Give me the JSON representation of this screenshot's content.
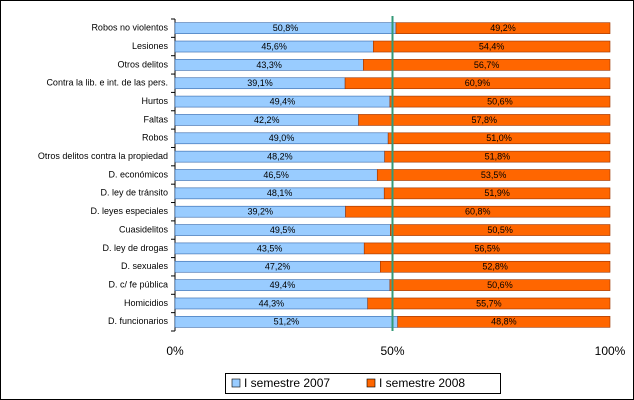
{
  "chart_data": {
    "type": "stacked_barh",
    "categories": [
      "Robos no violentos",
      "Lesiones",
      "Otros delitos",
      "Contra la lib. e int. de las pers.",
      "Hurtos",
      "Faltas",
      "Robos",
      "Otros delitos contra la propiedad",
      "D. económicos",
      "D. ley de tránsito",
      "D. leyes especiales",
      "Cuasidelitos",
      "D. ley de drogas",
      "D. sexuales",
      "D. c/ fe pública",
      "Homicidios",
      "D. funcionarios"
    ],
    "series": [
      {
        "name": "I semestre 2007",
        "color": "#99ccff",
        "values": [
          50.8,
          45.6,
          43.3,
          39.1,
          49.4,
          42.2,
          49.0,
          48.2,
          46.5,
          48.1,
          39.2,
          49.5,
          43.5,
          47.2,
          49.4,
          44.3,
          51.2
        ],
        "value_labels": [
          "50,8%",
          "45,6%",
          "43,3%",
          "39,1%",
          "49,4%",
          "42,2%",
          "49,0%",
          "48,2%",
          "46,5%",
          "48,1%",
          "39,2%",
          "49,5%",
          "43,5%",
          "47,2%",
          "49,4%",
          "44,3%",
          "51,2%"
        ]
      },
      {
        "name": "I semestre 2008",
        "color": "#ff6600",
        "values": [
          49.2,
          54.4,
          56.7,
          60.9,
          50.6,
          57.8,
          51.0,
          51.8,
          53.5,
          51.9,
          60.8,
          50.5,
          56.5,
          52.8,
          50.6,
          55.7,
          48.8
        ],
        "value_labels": [
          "49,2%",
          "54,4%",
          "56,7%",
          "60,9%",
          "50,6%",
          "57,8%",
          "51,0%",
          "51,8%",
          "53,5%",
          "51,9%",
          "60,8%",
          "50,5%",
          "56,5%",
          "52,8%",
          "50,6%",
          "55,7%",
          "48,8%"
        ]
      }
    ],
    "xlim": [
      0,
      100
    ],
    "xticks": [
      {
        "value": 0,
        "label": "0%"
      },
      {
        "value": 50,
        "label": "50%"
      },
      {
        "value": 100,
        "label": "100%"
      }
    ],
    "reference_line": {
      "value": 50,
      "color": "#339977"
    },
    "legend": "bottom"
  }
}
